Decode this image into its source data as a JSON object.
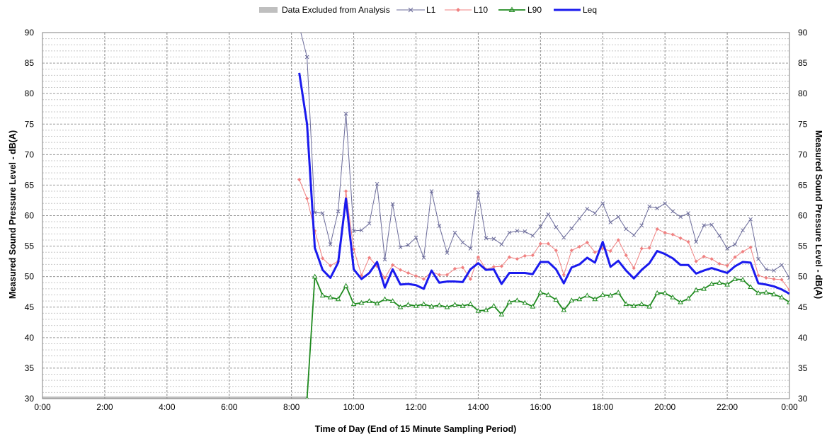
{
  "chart_data": {
    "type": "line",
    "xlabel": "Time of Day (End of 15 Minute Sampling Period)",
    "ylabel": "Measured Sound Pressure Level - dB(A)",
    "ylabel_right": "Measured Sound Pressure Level - dB(A)",
    "xlim_hours": [
      0,
      24
    ],
    "ylim": [
      30,
      90
    ],
    "x_tick_labels": [
      "0:00",
      "2:00",
      "4:00",
      "6:00",
      "8:00",
      "10:00",
      "12:00",
      "14:00",
      "16:00",
      "18:00",
      "20:00",
      "22:00",
      "0:00"
    ],
    "y_tick_labels": [
      "30",
      "35",
      "40",
      "45",
      "50",
      "55",
      "60",
      "65",
      "70",
      "75",
      "80",
      "85",
      "90"
    ],
    "minor_gridlines_db": 1,
    "grid": true,
    "legend_position": "top",
    "excluded": {
      "name": "Data Excluded from Analysis",
      "from_hour": 0,
      "to_hour": 8.5,
      "color": "#bfbfbf"
    },
    "x_hours": [
      8.25,
      8.5,
      8.75,
      9.0,
      9.25,
      9.5,
      9.75,
      10.0,
      10.25,
      10.5,
      10.75,
      11.0,
      11.25,
      11.5,
      11.75,
      12.0,
      12.25,
      12.5,
      12.75,
      13.0,
      13.25,
      13.5,
      13.75,
      14.0,
      14.25,
      14.5,
      14.75,
      15.0,
      15.25,
      15.5,
      15.75,
      16.0,
      16.25,
      16.5,
      16.75,
      17.0,
      17.25,
      17.5,
      17.75,
      18.0,
      18.25,
      18.5,
      18.75,
      19.0,
      19.25,
      19.5,
      19.75,
      20.0,
      20.25,
      20.5,
      20.75,
      21.0,
      21.25,
      21.5,
      21.75,
      22.0,
      22.25,
      22.5,
      22.75,
      23.0,
      23.25,
      23.5,
      23.75,
      24.0
    ],
    "series": [
      {
        "name": "L1",
        "color": "#6b6b9a",
        "marker": "x",
        "width": 1,
        "values": [
          91.0,
          86.0,
          60.5,
          60.4,
          55.3,
          60.7,
          76.7,
          57.5,
          57.6,
          58.7,
          65.2,
          52.8,
          61.9,
          54.8,
          55.2,
          56.4,
          53.1,
          64.0,
          58.3,
          53.9,
          57.2,
          55.6,
          54.6,
          63.8,
          56.3,
          56.2,
          55.3,
          57.2,
          57.5,
          57.4,
          56.7,
          58.2,
          60.2,
          58.1,
          56.4,
          57.9,
          59.5,
          61.1,
          60.4,
          62.0,
          58.9,
          59.8,
          57.8,
          56.8,
          58.4,
          61.5,
          61.2,
          62.0,
          60.7,
          59.8,
          60.4,
          55.7,
          58.4,
          58.5,
          56.7,
          54.6,
          55.3,
          57.6,
          59.4,
          52.9,
          51.2,
          51.0,
          51.9,
          49.8
        ]
      },
      {
        "name": "L10",
        "color": "#f08080",
        "marker": "diamond",
        "width": 1,
        "values": [
          65.9,
          62.8,
          57.5,
          53.0,
          51.8,
          52.5,
          64.0,
          54.5,
          50.2,
          53.1,
          51.7,
          49.8,
          51.9,
          51.1,
          50.6,
          50.1,
          49.6,
          50.8,
          50.3,
          50.3,
          51.3,
          51.5,
          49.6,
          53.2,
          51.2,
          51.6,
          51.7,
          53.2,
          52.9,
          53.4,
          53.5,
          55.4,
          55.4,
          54.3,
          50.3,
          54.3,
          54.9,
          55.6,
          54.0,
          54.6,
          54.2,
          56.0,
          53.5,
          51.4,
          54.6,
          54.7,
          57.8,
          57.2,
          56.9,
          56.3,
          55.7,
          52.5,
          53.3,
          52.9,
          52.1,
          51.8,
          53.2,
          54.1,
          54.8,
          50.2,
          49.8,
          49.6,
          49.5,
          47.8
        ]
      },
      {
        "name": "L90",
        "color": "#1f8a1f",
        "marker": "triangle",
        "width": 1.8,
        "values": [
          29.0,
          30.0,
          50.0,
          46.9,
          46.6,
          46.3,
          48.5,
          45.5,
          45.7,
          46.0,
          45.6,
          46.3,
          46.0,
          45.0,
          45.4,
          45.2,
          45.5,
          45.1,
          45.3,
          45.0,
          45.4,
          45.2,
          45.5,
          44.4,
          44.5,
          45.2,
          43.8,
          45.8,
          46.1,
          45.7,
          45.1,
          47.4,
          47.0,
          46.2,
          44.5,
          46.1,
          46.3,
          46.9,
          46.3,
          47.0,
          46.9,
          47.4,
          45.5,
          45.2,
          45.5,
          45.1,
          47.3,
          47.3,
          46.6,
          45.8,
          46.4,
          47.8,
          48.0,
          48.8,
          49.0,
          48.7,
          49.6,
          49.5,
          48.3,
          47.3,
          47.4,
          47.1,
          46.6,
          45.8
        ]
      },
      {
        "name": "Leq",
        "color": "#1a1aee",
        "marker": "none",
        "width": 3,
        "values": [
          83.4,
          75.0,
          54.7,
          51.1,
          49.8,
          52.3,
          62.8,
          51.2,
          49.6,
          50.6,
          52.4,
          48.2,
          51.2,
          48.7,
          48.8,
          48.6,
          48.0,
          51.0,
          49.0,
          49.2,
          49.2,
          49.1,
          51.2,
          52.2,
          51.1,
          51.2,
          48.8,
          50.6,
          50.6,
          50.6,
          50.4,
          52.4,
          52.4,
          51.2,
          48.9,
          51.5,
          52.0,
          53.1,
          52.3,
          55.7,
          51.6,
          52.6,
          51.0,
          49.7,
          51.1,
          52.2,
          54.2,
          53.7,
          53.0,
          51.9,
          51.9,
          50.5,
          51.0,
          51.4,
          51.0,
          50.6,
          51.7,
          52.4,
          52.3,
          48.9,
          48.7,
          48.4,
          47.9,
          47.2
        ]
      }
    ]
  }
}
